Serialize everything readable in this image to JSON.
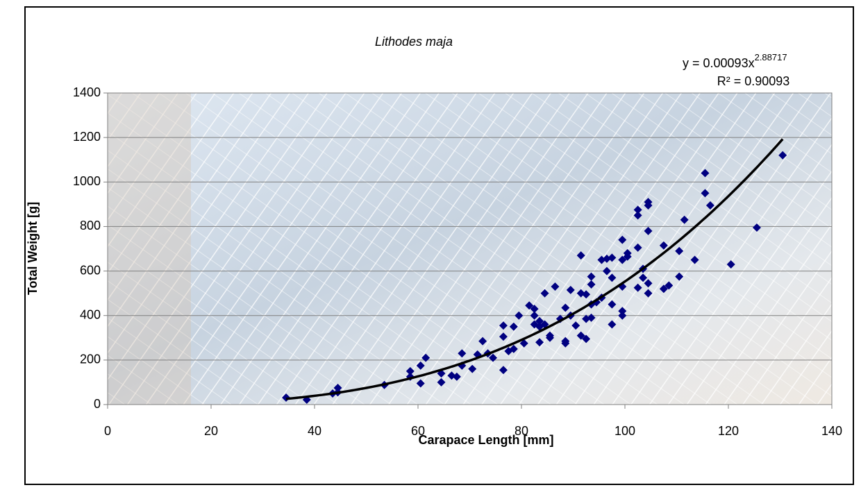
{
  "chart_data": {
    "type": "scatter",
    "title": "Lithodes maja",
    "x_label": "Carapace Length [mm]",
    "y_label": "Total Weight [g]",
    "xlim": [
      0,
      140
    ],
    "xticks": [
      0,
      20,
      40,
      60,
      80,
      100,
      120,
      140
    ],
    "ylim": [
      0,
      1400
    ],
    "yticks": [
      0,
      200,
      400,
      600,
      800,
      1000,
      1200,
      1400
    ],
    "grid": true,
    "series": [
      {
        "color": "#000080",
        "x": [
          34.5,
          38.5,
          43.5,
          44.5,
          44.5,
          53.5,
          58.5,
          58.5,
          60.5,
          60.5,
          61.5,
          64.5,
          64.5,
          66.5,
          67.5,
          68.5,
          68.5,
          70.5,
          71.5,
          72.5,
          73.5,
          74.5,
          76.5,
          76.5,
          76.5,
          77.5,
          78.5,
          78.5,
          79.5,
          80.5,
          81.5,
          82.5,
          82.5,
          82.5,
          83.5,
          83.5,
          83.5,
          84.5,
          84.5,
          85.5,
          85.5,
          86.5,
          87.5,
          88.5,
          88.5,
          88.5,
          89.5,
          89.5,
          90.5,
          91.5,
          91.5,
          91.5,
          92.5,
          92.5,
          92.5,
          93.5,
          93.5,
          93.5,
          93.5,
          94.5,
          95.5,
          95.5,
          96.5,
          96.5,
          97.5,
          97.5,
          97.5,
          97.5,
          99.5,
          99.5,
          99.5,
          99.5,
          99.5,
          100.5,
          100.5,
          102.5,
          102.5,
          102.5,
          102.5,
          103.5,
          103.5,
          104.5,
          104.5,
          104.5,
          104.5,
          104.5,
          107.5,
          107.5,
          108.5,
          110.5,
          110.5,
          111.5,
          113.5,
          115.5,
          115.5,
          116.5,
          120.5,
          125.5,
          130.5
        ],
        "values": [
          31,
          22,
          50,
          75,
          55,
          88,
          150,
          125,
          95,
          175,
          210,
          100,
          140,
          130,
          125,
          230,
          175,
          160,
          225,
          285,
          230,
          210,
          155,
          305,
          355,
          240,
          250,
          350,
          400,
          275,
          445,
          430,
          400,
          360,
          375,
          350,
          280,
          500,
          360,
          300,
          310,
          530,
          385,
          435,
          285,
          275,
          515,
          400,
          355,
          670,
          500,
          310,
          495,
          385,
          295,
          575,
          540,
          450,
          390,
          460,
          650,
          480,
          600,
          655,
          660,
          570,
          450,
          360,
          740,
          650,
          530,
          420,
          400,
          665,
          680,
          875,
          850,
          705,
          525,
          610,
          570,
          910,
          895,
          780,
          545,
          500,
          715,
          520,
          535,
          690,
          575,
          830,
          650,
          1040,
          950,
          895,
          630,
          795,
          1120
        ]
      }
    ],
    "trendline": {
      "coefficient": {
        "value": 0.00093,
        "label": "y = 0.00093x"
      },
      "exponent": 2.88717,
      "r_squared": {
        "value": 0.90093,
        "label": "R² = 0.90093"
      },
      "x_range": [
        34.5,
        130.5
      ],
      "color": "#000000"
    }
  }
}
